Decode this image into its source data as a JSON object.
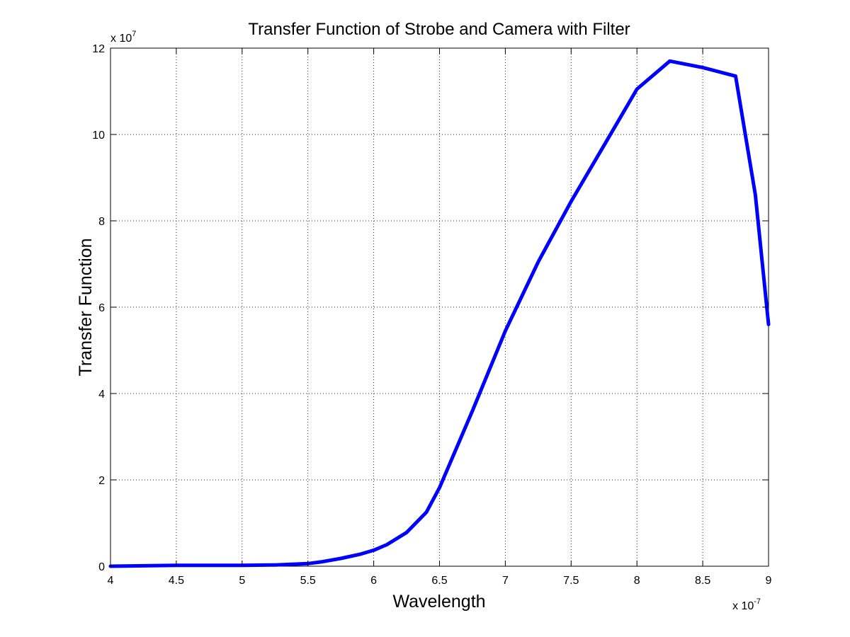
{
  "chart_data": {
    "type": "line",
    "title": "Transfer Function of Strobe and Camera with Filter",
    "xlabel": "Wavelength",
    "ylabel": "Transfer Function",
    "x_multiplier_label": "x 10",
    "x_multiplier_exponent": "-7",
    "y_multiplier_label": "x 10",
    "y_multiplier_exponent": "7",
    "xlim": [
      4,
      9
    ],
    "ylim": [
      0,
      12
    ],
    "x_ticks": [
      4,
      4.5,
      5,
      5.5,
      6,
      6.5,
      7,
      7.5,
      8,
      8.5,
      9
    ],
    "x_tick_labels": [
      "4",
      "4.5",
      "5",
      "5.5",
      "6",
      "6.5",
      "7",
      "7.5",
      "8",
      "8.5",
      "9"
    ],
    "y_ticks": [
      0,
      2,
      4,
      6,
      8,
      10,
      12
    ],
    "y_tick_labels": [
      "0",
      "2",
      "4",
      "6",
      "8",
      "10",
      "12"
    ],
    "grid": true,
    "series": [
      {
        "color": "#0000ff",
        "x": [
          4.0,
          4.25,
          4.5,
          4.75,
          5.0,
          5.25,
          5.5,
          5.6,
          5.75,
          5.9,
          6.0,
          6.1,
          6.25,
          6.4,
          6.5,
          6.75,
          7.0,
          7.25,
          7.5,
          7.75,
          8.0,
          8.25,
          8.5,
          8.75,
          8.9,
          9.0
        ],
        "y": [
          0.0,
          0.01,
          0.02,
          0.02,
          0.02,
          0.03,
          0.06,
          0.1,
          0.18,
          0.28,
          0.37,
          0.5,
          0.78,
          1.25,
          1.82,
          3.6,
          5.45,
          7.05,
          8.45,
          9.75,
          11.05,
          11.7,
          11.55,
          11.35,
          8.6,
          5.6
        ]
      }
    ]
  }
}
